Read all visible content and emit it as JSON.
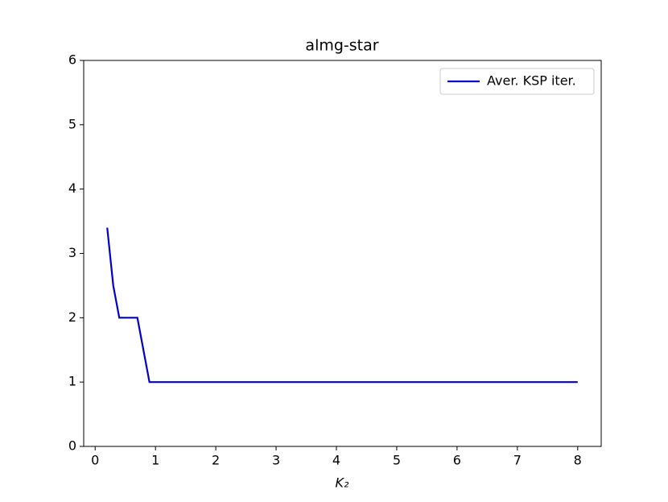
{
  "chart_data": {
    "type": "line",
    "title": "almg-star",
    "xlabel": "K₂",
    "x": [
      0.2,
      0.3,
      0.4,
      0.5,
      0.6,
      0.7,
      0.8,
      0.9,
      1,
      2,
      3,
      4,
      5,
      6,
      7,
      8
    ],
    "series": [
      {
        "name": "Aver. KSP iter.",
        "color": "#0000cc",
        "values": [
          3.4,
          2.5,
          2,
          2,
          2,
          2,
          1.5,
          1,
          1,
          1,
          1,
          1,
          1,
          1,
          1,
          1
        ]
      }
    ],
    "xlim": [
      -0.19,
      8.39
    ],
    "xticks": [
      0,
      1,
      2,
      3,
      4,
      5,
      6,
      7,
      8
    ],
    "ylim": [
      0,
      6
    ],
    "yticks": [
      0,
      1,
      2,
      3,
      4,
      5,
      6
    ],
    "legend": "upper right",
    "grid": false
  }
}
